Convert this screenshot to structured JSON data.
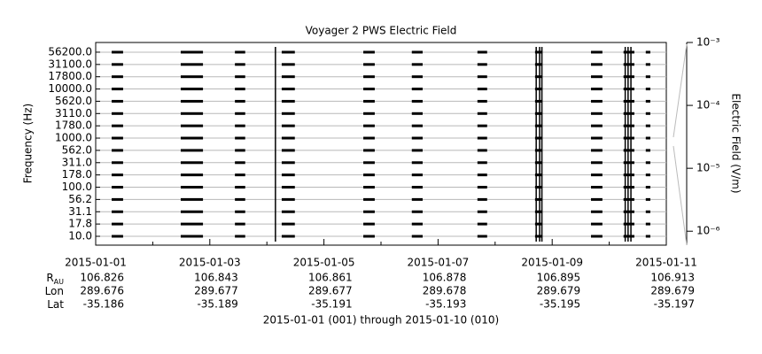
{
  "chart_data": {
    "type": "segments",
    "title": "Voyager 2 PWS Electric Field",
    "y_label": "Frequency (Hz)",
    "y2_label": "Electric Field (V/m)",
    "footer": "2015-01-01 (001) through 2015-01-10 (010)",
    "categories": [
      "10.0",
      "17.8",
      "31.1",
      "56.2",
      "100.0",
      "178.0",
      "311.0",
      "562.0",
      "1000.0",
      "1780.0",
      "3110.0",
      "5620.0",
      "10000.0",
      "17800.0",
      "31100.0",
      "56200.0"
    ],
    "xlim": [
      1,
      11
    ],
    "xticks": [
      {
        "value": 1,
        "label": "2015-01-01"
      },
      {
        "value": 3,
        "label": "2015-01-03"
      },
      {
        "value": 5,
        "label": "2015-01-05"
      },
      {
        "value": 7,
        "label": "2015-01-07"
      },
      {
        "value": 9,
        "label": "2015-01-09"
      },
      {
        "value": 11,
        "label": "2015-01-11"
      }
    ],
    "y2lim": [
      6e-07,
      0.001
    ],
    "y2_log": true,
    "y2ticks": [
      {
        "value": 0.001,
        "label": "10⁻³"
      },
      {
        "value": 0.0001,
        "label": "10⁻⁴"
      },
      {
        "value": 1e-05,
        "label": "10⁻⁵"
      },
      {
        "value": 1e-06,
        "label": "10⁻⁶"
      }
    ],
    "color": "#000000",
    "grid": true,
    "segments": [
      [
        1.28,
        1.48
      ],
      [
        2.49,
        2.88
      ],
      [
        3.44,
        3.62
      ],
      [
        4.26,
        4.49
      ],
      [
        5.69,
        5.89
      ],
      [
        6.54,
        6.73
      ],
      [
        7.69,
        7.86
      ],
      [
        8.7,
        8.83
      ],
      [
        9.68,
        9.88
      ],
      [
        10.25,
        10.44
      ],
      [
        10.64,
        10.72
      ]
    ],
    "spikes": [
      4.15,
      8.72,
      8.78,
      8.82,
      10.28,
      10.33,
      10.38
    ],
    "ephemeris": {
      "rows": [
        {
          "label": "R",
          "label_sub": "AU",
          "values": [
            106.826,
            106.843,
            106.861,
            106.878,
            106.895,
            106.913
          ]
        },
        {
          "label": "Lon",
          "values": [
            289.676,
            289.677,
            289.677,
            289.678,
            289.679,
            289.679
          ]
        },
        {
          "label": "Lat",
          "values": [
            -35.186,
            -35.189,
            -35.191,
            -35.193,
            -35.195,
            -35.197
          ]
        }
      ]
    }
  }
}
